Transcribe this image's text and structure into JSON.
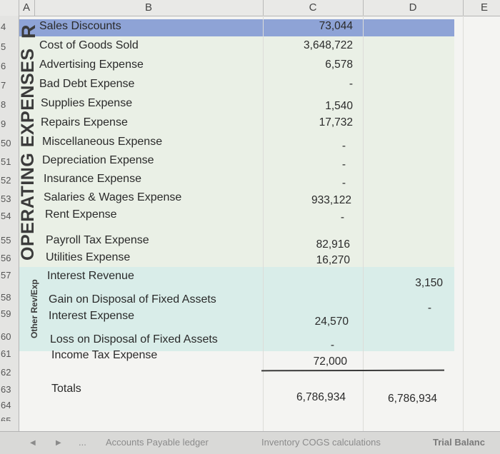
{
  "columns": [
    "A",
    "B",
    "C",
    "D",
    "E"
  ],
  "row_numbers": [
    "4",
    "5",
    "6",
    "7",
    "8",
    "9",
    "50",
    "51",
    "52",
    "53",
    "54",
    "55",
    "56",
    "57",
    "58",
    "59",
    "60",
    "61",
    "62",
    "63",
    "64",
    "65"
  ],
  "section_labels": {
    "revenue_partial": "R",
    "operating": "OPERATING EXPENSES",
    "other": "Other Rev/Exp"
  },
  "rows": [
    {
      "label": "Sales Discounts",
      "c": "73,044",
      "d": ""
    },
    {
      "label": "Cost of Goods Sold",
      "c": "3,648,722",
      "d": ""
    },
    {
      "label": "Advertising Expense",
      "c": "6,578",
      "d": ""
    },
    {
      "label": "Bad Debt Expense",
      "c": "-",
      "d": ""
    },
    {
      "label": "Supplies Expense",
      "c": "1,540",
      "d": ""
    },
    {
      "label": "Repairs Expense",
      "c": "17,732",
      "d": ""
    },
    {
      "label": "Miscellaneous Expense",
      "c": "-",
      "d": ""
    },
    {
      "label": "Depreciation Expense",
      "c": "-",
      "d": ""
    },
    {
      "label": "Insurance Expense",
      "c": "-",
      "d": ""
    },
    {
      "label": "Salaries & Wages Expense",
      "c": "933,122",
      "d": ""
    },
    {
      "label": "Rent Expense",
      "c": "-",
      "d": ""
    },
    {
      "label": "Payroll Tax Expense",
      "c": "82,916",
      "d": ""
    },
    {
      "label": "Utilities Expense",
      "c": "16,270",
      "d": ""
    },
    {
      "label": "Interest Revenue",
      "c": "",
      "d": "3,150"
    },
    {
      "label": "Gain on Disposal of Fixed Assets",
      "c": "",
      "d": "-"
    },
    {
      "label": "Interest Expense",
      "c": "24,570",
      "d": ""
    },
    {
      "label": "Loss on Disposal of Fixed Assets",
      "c": "-",
      "d": ""
    },
    {
      "label": "Income Tax Expense",
      "c": "72,000",
      "d": ""
    }
  ],
  "totals": {
    "label": "Totals",
    "c": "6,786,934",
    "d": "6,786,934"
  },
  "sheet_tabs": [
    "Accounts Payable ledger",
    "Inventory COGS calculations",
    "Trial Balanc"
  ],
  "tab_nav": {
    "prev": "◀",
    "next": "▶",
    "more": "..."
  },
  "colors": {
    "selected_row": "#8ea3d6",
    "operating_band": "#eaf0e6",
    "other_band": "#d9ede9"
  }
}
